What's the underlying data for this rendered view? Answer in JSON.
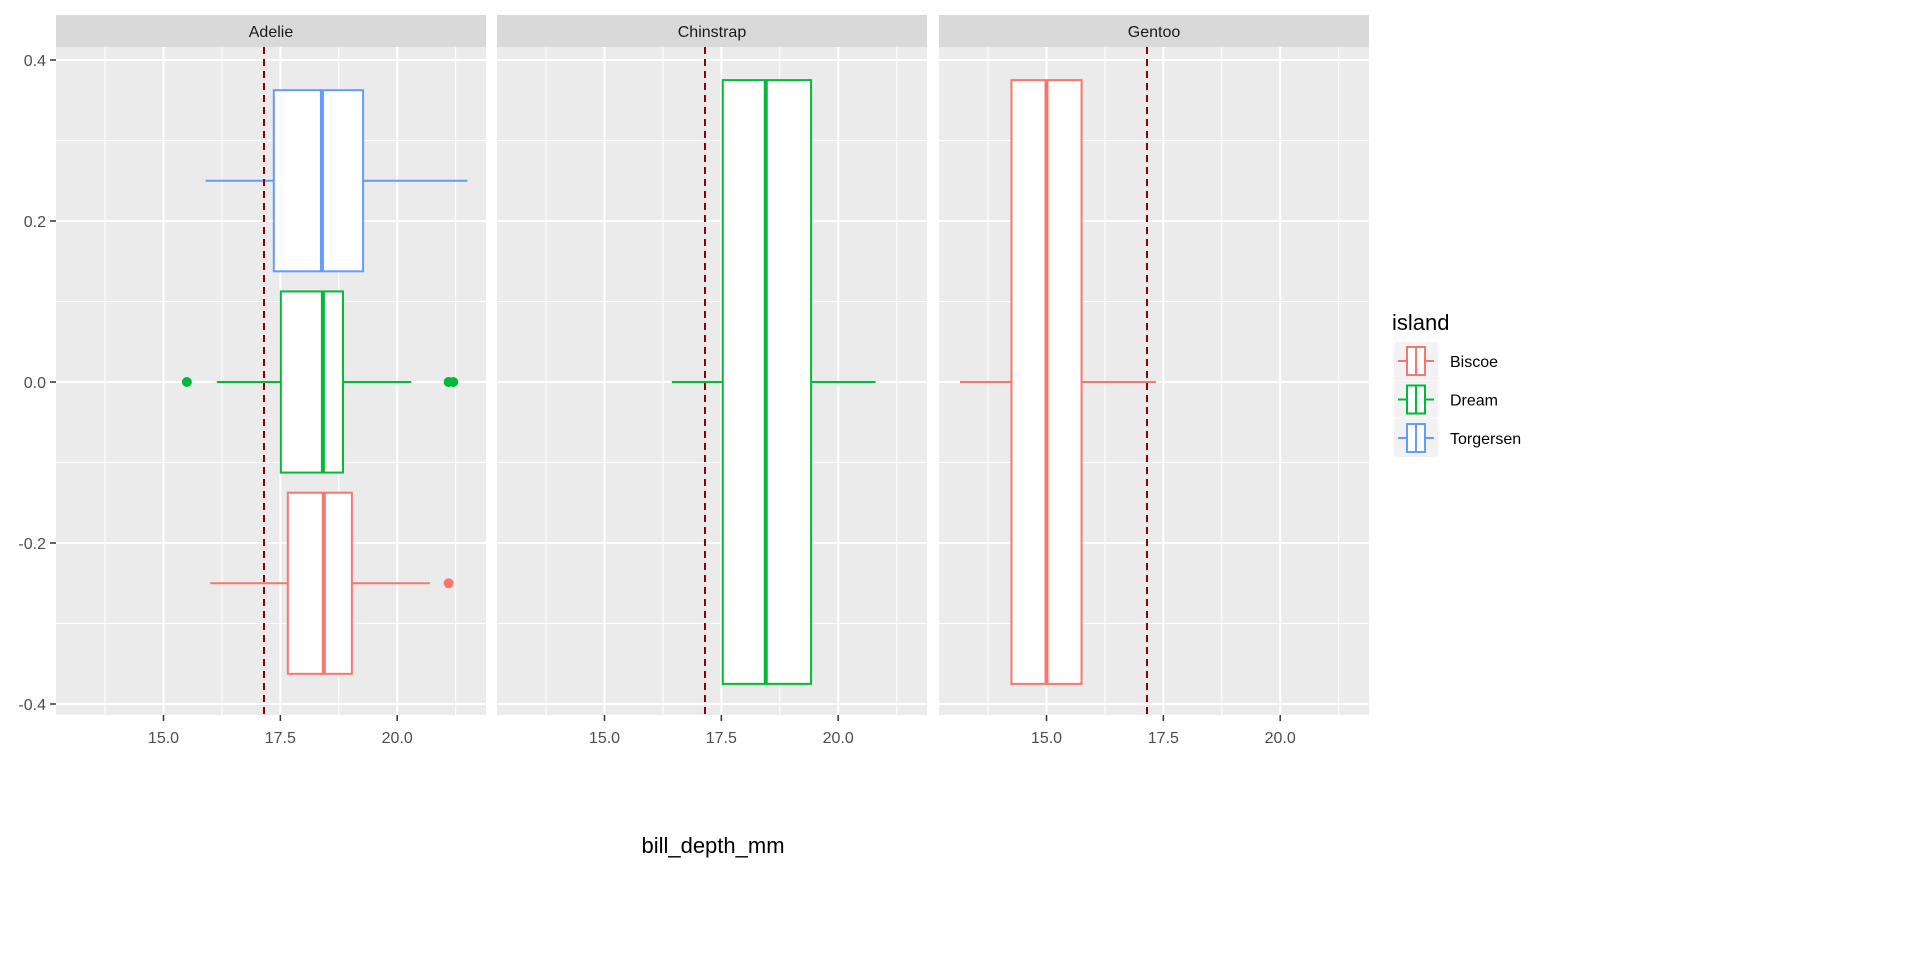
{
  "chart_data": {
    "type": "boxplot",
    "facet_var": "species",
    "xlabel": "bill_depth_mm",
    "ylabel": "",
    "xlim": [
      12.7,
      21.9
    ],
    "ylim": [
      -0.43,
      0.416
    ],
    "x_ticks": [
      15.0,
      17.5,
      20.0
    ],
    "x_tick_labels": [
      "15.0",
      "17.5",
      "20.0"
    ],
    "y_ticks": [
      0.4,
      0.2,
      0.0,
      -0.2,
      -0.4
    ],
    "y_tick_labels": [
      "0.4",
      "0.2",
      "0.0",
      "-0.2",
      "-0.4"
    ],
    "grid": true,
    "legend": {
      "title": "island",
      "position": "right",
      "entries": [
        "Biscoe",
        "Dream",
        "Torgersen"
      ]
    },
    "colors": {
      "Biscoe": "#F8766D",
      "Dream": "#00BA38",
      "Torgersen": "#619CFF",
      "mean_line": "#8B0000"
    },
    "panels": [
      {
        "label": "Adelie",
        "mean_line": 17.15,
        "boxes": [
          {
            "island": "Torgersen",
            "ymin": 0.1375,
            "ymax": 0.3625,
            "ycenter": 0.25,
            "lower_whisker": 15.9,
            "q1": 17.36,
            "median": 18.39,
            "q3": 19.27,
            "upper_whisker": 21.5,
            "outliers": []
          },
          {
            "island": "Dream",
            "ymin": -0.1125,
            "ymax": 0.1125,
            "ycenter": 0.0,
            "lower_whisker": 16.14,
            "q1": 17.51,
            "median": 18.41,
            "q3": 18.84,
            "upper_whisker": 20.3,
            "outliers": [
              15.5,
              21.1,
              21.2
            ]
          },
          {
            "island": "Biscoe",
            "ymin": -0.3625,
            "ymax": -0.1375,
            "ycenter": -0.25,
            "lower_whisker": 16.0,
            "q1": 17.66,
            "median": 18.43,
            "q3": 19.03,
            "upper_whisker": 20.7,
            "outliers": [
              21.1
            ]
          }
        ]
      },
      {
        "label": "Chinstrap",
        "mean_line": 17.15,
        "boxes": [
          {
            "island": "Dream",
            "ymin": -0.375,
            "ymax": 0.375,
            "ycenter": 0.0,
            "lower_whisker": 16.44,
            "q1": 17.53,
            "median": 18.45,
            "q3": 19.42,
            "upper_whisker": 20.8,
            "outliers": []
          }
        ]
      },
      {
        "label": "Gentoo",
        "mean_line": 17.15,
        "boxes": [
          {
            "island": "Biscoe",
            "ymin": -0.375,
            "ymax": 0.375,
            "ycenter": 0.0,
            "lower_whisker": 13.15,
            "q1": 14.25,
            "median": 15.0,
            "q3": 15.75,
            "upper_whisker": 17.34,
            "outliers": []
          }
        ]
      }
    ]
  }
}
